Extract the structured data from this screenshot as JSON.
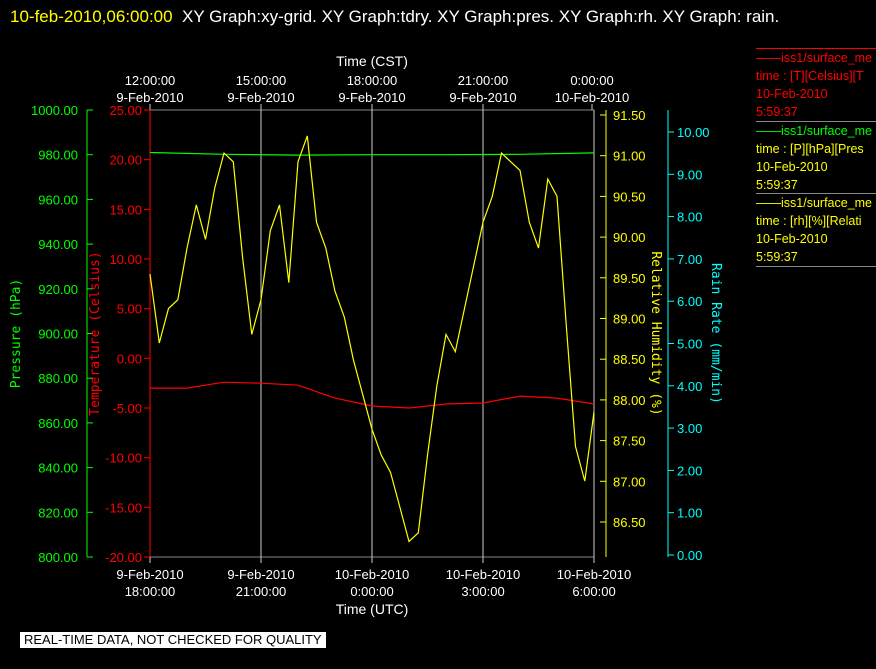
{
  "title": {
    "timestamp": "10-feb-2010,06:00:00",
    "text": "XY Graph:xy-grid.  XY Graph:tdry.  XY Graph:pres.  XY Graph:rh.  XY Graph: rain."
  },
  "footer": "REAL-TIME DATA, NOT CHECKED FOR QUALITY",
  "legend": [
    {
      "line": "iss1/surface_me",
      "unit": "time : [T][Celsius][T",
      "date": "10-Feb-2010",
      "time": "5:59:37",
      "color": "#ff0000"
    },
    {
      "line": "iss1/surface_me",
      "unit": "time : [P][hPa][Pres",
      "date": "10-Feb-2010",
      "time": "5:59:37",
      "color": "#00ff00"
    },
    {
      "line": "iss1/surface_me",
      "unit": "time : [rh][%][Relati",
      "date": "10-Feb-2010",
      "time": "5:59:37",
      "color": "#ffff00"
    }
  ],
  "chart_data": {
    "type": "line",
    "top_axis": {
      "label": "Time (CST)",
      "ticks": [
        {
          "l1": "12:00:00",
          "l2": "9-Feb-2010"
        },
        {
          "l1": "15:00:00",
          "l2": "9-Feb-2010"
        },
        {
          "l1": "18:00:00",
          "l2": "9-Feb-2010"
        },
        {
          "l1": "21:00:00",
          "l2": "9-Feb-2010"
        },
        {
          "l1": "0:00:00",
          "l2": "10-Feb-2010"
        }
      ]
    },
    "bottom_axis": {
      "label": "Time (UTC)",
      "ticks": [
        {
          "l1": "9-Feb-2010",
          "l2": "18:00:00"
        },
        {
          "l1": "9-Feb-2010",
          "l2": "21:00:00"
        },
        {
          "l1": "10-Feb-2010",
          "l2": "0:00:00"
        },
        {
          "l1": "10-Feb-2010",
          "l2": "3:00:00"
        },
        {
          "l1": "10-Feb-2010",
          "l2": "6:00:00"
        }
      ]
    },
    "xlim": [
      "2010-02-09T18:00",
      "2010-02-10T06:00"
    ],
    "grid": true,
    "axes": {
      "pressure": {
        "label": "Pressure (hPa)",
        "color": "#00ff00",
        "ticks": [
          "1000.00",
          "980.00",
          "960.00",
          "940.00",
          "920.00",
          "900.00",
          "880.00",
          "860.00",
          "840.00",
          "820.00",
          "800.00"
        ],
        "ylim": [
          800,
          1000
        ]
      },
      "temperature": {
        "label": "Temperature (Celsius)",
        "color": "#ff0000",
        "ticks": [
          "25.00",
          "20.00",
          "15.00",
          "10.00",
          "5.00",
          "0.00",
          "-5.00",
          "-10.00",
          "-15.00",
          "-20.00"
        ],
        "ylim": [
          -20,
          25
        ]
      },
      "humidity": {
        "label": "Relative Humidity (%)",
        "color": "#ffff00",
        "ticks": [
          "91.50",
          "91.00",
          "90.50",
          "90.00",
          "89.50",
          "89.00",
          "88.50",
          "88.00",
          "87.50",
          "87.00",
          "86.50"
        ],
        "ylim": [
          86.32,
          91.5
        ]
      },
      "rain": {
        "label": "Rain Rate (mm/min)",
        "color": "#00ffff",
        "ticks": [
          "10.00",
          "9.00",
          "8.00",
          "7.00",
          "6.00",
          "5.00",
          "4.00",
          "3.00",
          "2.00",
          "1.00",
          "0.00"
        ],
        "ylim": [
          0,
          10.55
        ]
      }
    },
    "series": [
      {
        "name": "iss1/surface_me",
        "axis": "temperature",
        "color": "#ff0000",
        "x": [
          "2010-02-09T18:00",
          "2010-02-09T19:00",
          "2010-02-09T20:00",
          "2010-02-09T21:00",
          "2010-02-09T22:00",
          "2010-02-09T23:00",
          "2010-02-10T00:00",
          "2010-02-10T01:00",
          "2010-02-10T02:00",
          "2010-02-10T03:00",
          "2010-02-10T04:00",
          "2010-02-10T05:00",
          "2010-02-10T06:00"
        ],
        "values": [
          -3.0,
          -3.0,
          -2.4,
          -2.5,
          -2.7,
          -4.0,
          -4.8,
          -5.0,
          -4.6,
          -4.5,
          -3.8,
          -4.0,
          -4.6
        ]
      },
      {
        "name": "iss1/surface_me",
        "axis": "pressure",
        "color": "#00ff00",
        "x": [
          "2010-02-09T18:00",
          "2010-02-09T20:00",
          "2010-02-09T22:00",
          "2010-02-10T00:00",
          "2010-02-10T02:00",
          "2010-02-10T04:00",
          "2010-02-10T06:00"
        ],
        "values": [
          981.0,
          980.2,
          979.8,
          980.0,
          980.0,
          980.2,
          980.8
        ]
      },
      {
        "name": "iss1/surface_me",
        "axis": "humidity",
        "color": "#ffff00",
        "x": [
          "2010-02-09T18:00",
          "2010-02-09T18:15",
          "2010-02-09T18:30",
          "2010-02-09T18:45",
          "2010-02-09T19:00",
          "2010-02-09T19:15",
          "2010-02-09T19:30",
          "2010-02-09T19:45",
          "2010-02-09T20:00",
          "2010-02-09T20:15",
          "2010-02-09T20:30",
          "2010-02-09T20:45",
          "2010-02-09T21:00",
          "2010-02-09T21:15",
          "2010-02-09T21:30",
          "2010-02-09T21:45",
          "2010-02-09T22:00",
          "2010-02-09T22:15",
          "2010-02-09T22:30",
          "2010-02-09T22:45",
          "2010-02-09T23:00",
          "2010-02-09T23:15",
          "2010-02-09T23:30",
          "2010-02-09T23:45",
          "2010-02-10T00:00",
          "2010-02-10T00:15",
          "2010-02-10T00:30",
          "2010-02-10T00:45",
          "2010-02-10T01:00",
          "2010-02-10T01:15",
          "2010-02-10T01:30",
          "2010-02-10T01:45",
          "2010-02-10T02:00",
          "2010-02-10T02:15",
          "2010-02-10T02:30",
          "2010-02-10T02:45",
          "2010-02-10T03:00",
          "2010-02-10T03:15",
          "2010-02-10T03:30",
          "2010-02-10T03:45",
          "2010-02-10T04:00",
          "2010-02-10T04:15",
          "2010-02-10T04:30",
          "2010-02-10T04:45",
          "2010-02-10T05:00",
          "2010-02-10T05:15",
          "2010-02-10T05:30",
          "2010-02-10T05:45",
          "2010-02-10T06:00"
        ],
        "values": [
          89.6,
          88.8,
          89.2,
          89.3,
          89.9,
          90.4,
          90.0,
          90.6,
          91.0,
          90.9,
          89.8,
          88.9,
          89.3,
          90.1,
          90.4,
          89.5,
          90.9,
          91.2,
          90.2,
          89.9,
          89.4,
          89.1,
          88.6,
          88.2,
          87.8,
          87.5,
          87.3,
          86.9,
          86.5,
          86.6,
          87.5,
          88.3,
          88.9,
          88.7,
          89.2,
          89.7,
          90.2,
          90.5,
          91.0,
          90.9,
          90.8,
          90.2,
          89.9,
          90.7,
          90.5,
          89.0,
          87.6,
          87.2,
          88.0
        ]
      }
    ]
  }
}
